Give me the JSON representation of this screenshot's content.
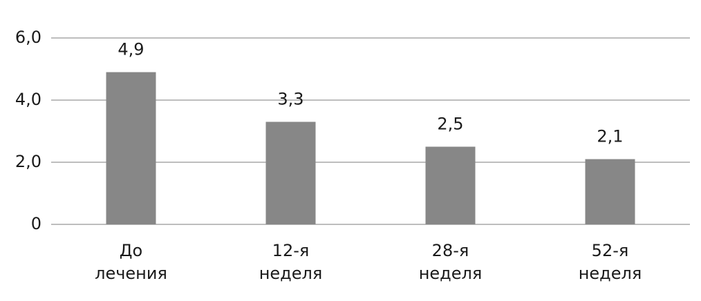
{
  "chart_data": {
    "type": "bar",
    "categories": [
      [
        "До",
        "лечения"
      ],
      [
        "12-я",
        "неделя"
      ],
      [
        "28-я",
        "неделя"
      ],
      [
        "52-я",
        "неделя"
      ]
    ],
    "values": [
      4.9,
      3.3,
      2.5,
      2.1
    ],
    "value_labels": [
      "4,9",
      "3,3",
      "2,5",
      "2,1"
    ],
    "color": "#878787",
    "ylim": [
      0,
      6
    ],
    "yticks": [
      {
        "value": 0,
        "label": "0"
      },
      {
        "value": 2,
        "label": "2,0"
      },
      {
        "value": 4,
        "label": "4,0"
      },
      {
        "value": 6,
        "label": "6,0"
      }
    ],
    "grid": true
  }
}
